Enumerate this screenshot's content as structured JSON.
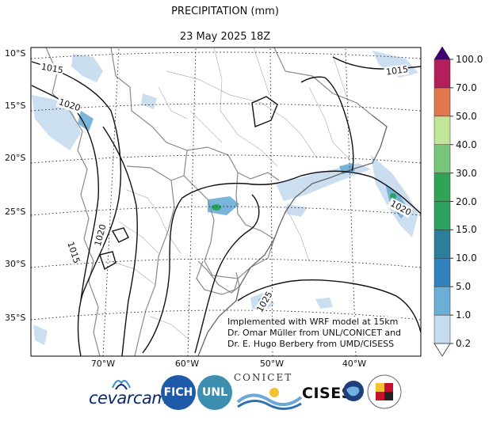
{
  "header": {
    "title": "PRECIPITATION (mm)",
    "subtitle": "23 May 2025 18Z"
  },
  "chart_data": {
    "type": "heatmap",
    "title": "PRECIPITATION (mm)",
    "subtitle": "23 May 2025 18Z",
    "lon_ticks": [
      "70°W",
      "60°W",
      "50°W",
      "40°W"
    ],
    "lat_ticks": [
      "10°S",
      "15°S",
      "20°S",
      "25°S",
      "30°S",
      "35°S"
    ],
    "colorbar": {
      "levels": [
        0.2,
        1.0,
        5.0,
        10.0,
        15.0,
        20.0,
        30.0,
        40.0,
        50.0,
        70.0,
        100.0
      ],
      "labels": [
        "0.2",
        "1.0",
        "5.0",
        "10.0",
        "15.0",
        "20.0",
        "30.0",
        "40.0",
        "50.0",
        "70.0",
        "100.0"
      ],
      "colors": [
        "#ffffff",
        "#c6dbef",
        "#6baed6",
        "#3182bd",
        "#2c7f9a",
        "#2ca25f",
        "#31a354",
        "#78c679",
        "#c2e699",
        "#f0a55a",
        "#e3784c",
        "#b21f5a",
        "#8c0d56",
        "#3f0071"
      ],
      "extend": "both"
    },
    "isobar_labels": [
      "1015",
      "1020",
      "1015",
      "1020",
      "1015",
      "1020",
      "1025"
    ],
    "grid": true
  },
  "annotation": {
    "lines": [
      "Implemented with WRF model at 15km",
      "Dr. Omar Müller from UNL/CONICET and",
      "Dr. E. Hugo Berbery from UMD/CISESS"
    ]
  },
  "logos": {
    "cevarcam": "cevarcam",
    "fich": "FICH",
    "unl": "UNL",
    "conicet": "CONICET",
    "cisess": "CISESS"
  }
}
